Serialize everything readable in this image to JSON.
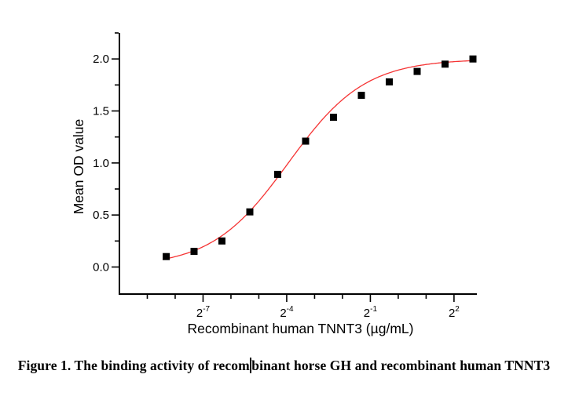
{
  "caption": {
    "prefix": "Figure 1. The binding activity of recom",
    "suffix": "binant horse GH and recombinant human TNNT3"
  },
  "chart_data": {
    "type": "scatter",
    "title": "",
    "xlabel": "Recombinant human TNNT3 (µg/mL)",
    "ylabel": "Mean OD value",
    "x_scale": "log2",
    "grid": false,
    "legend": null,
    "xlim_log2": [
      -10,
      2.82
    ],
    "ylim": [
      -0.26,
      2.25
    ],
    "points": [
      {
        "x": 0.003125,
        "y": 0.1
      },
      {
        "x": 0.00625,
        "y": 0.15
      },
      {
        "x": 0.0125,
        "y": 0.25
      },
      {
        "x": 0.025,
        "y": 0.53
      },
      {
        "x": 0.05,
        "y": 0.89
      },
      {
        "x": 0.1,
        "y": 1.21
      },
      {
        "x": 0.2,
        "y": 1.44
      },
      {
        "x": 0.4,
        "y": 1.65
      },
      {
        "x": 0.8,
        "y": 1.78
      },
      {
        "x": 1.6,
        "y": 1.88
      },
      {
        "x": 3.2,
        "y": 1.95
      },
      {
        "x": 6.4,
        "y": 2.0
      }
    ],
    "fit_curve": {
      "model": "4PL",
      "bottom": 0.0,
      "top": 2.0,
      "ec50": 0.065,
      "hill": 1.05,
      "log2_x_start": -8.45,
      "log2_x_end": 2.72
    },
    "x_ticks_major": [
      {
        "base": "2",
        "exp": "-7",
        "log2": -7
      },
      {
        "base": "2",
        "exp": "-4",
        "log2": -4
      },
      {
        "base": "2",
        "exp": "-1",
        "log2": -1
      },
      {
        "base": "2",
        "exp": "2",
        "log2": 2
      }
    ],
    "x_ticks_minor_log2": [
      -9,
      -8,
      -6,
      -5,
      -3,
      -2,
      0,
      1
    ],
    "y_ticks_major": [
      {
        "label": "0.0",
        "value": 0.0
      },
      {
        "label": "0.5",
        "value": 0.5
      },
      {
        "label": "1.0",
        "value": 1.0
      },
      {
        "label": "1.5",
        "value": 1.5
      },
      {
        "label": "2.0",
        "value": 2.0
      }
    ],
    "y_ticks_minor": [
      0.25,
      0.75,
      1.25,
      1.75,
      2.25
    ],
    "marker": {
      "shape": "square",
      "size": 9
    },
    "colors": {
      "curve": "#f53434",
      "marker": "#000000",
      "axis": "#000000",
      "background": "#ffffff"
    }
  }
}
